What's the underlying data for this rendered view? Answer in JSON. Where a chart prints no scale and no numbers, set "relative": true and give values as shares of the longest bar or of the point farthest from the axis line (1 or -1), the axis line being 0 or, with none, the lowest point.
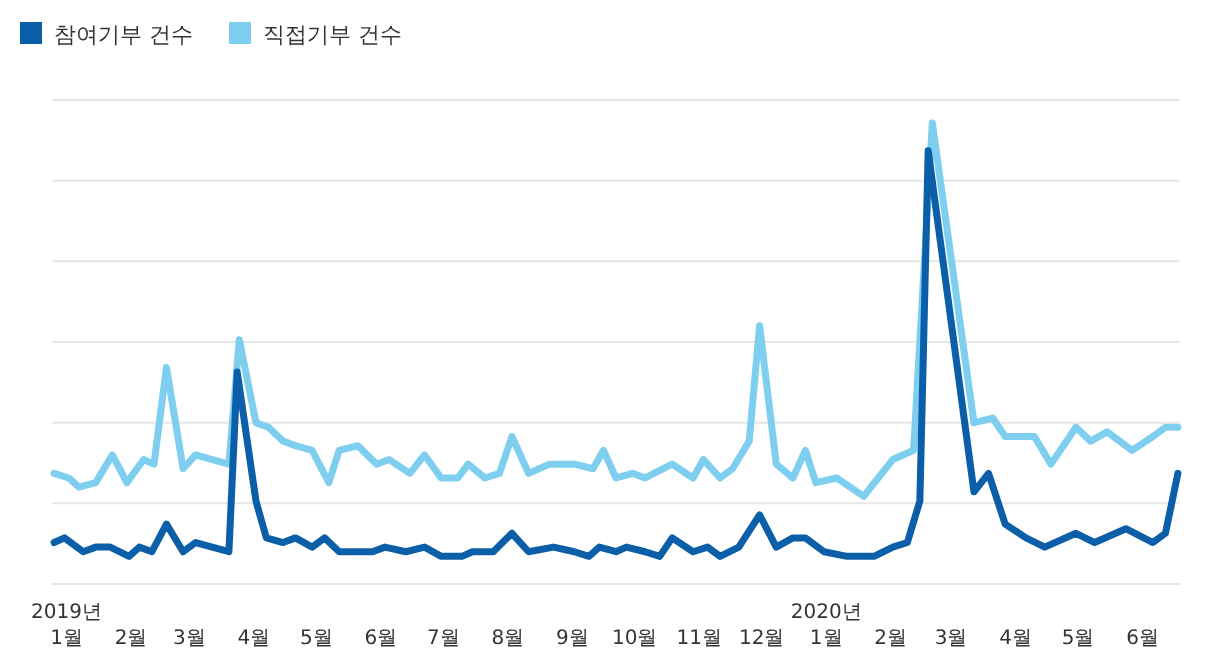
{
  "chart_data": {
    "type": "line",
    "relative": true,
    "grid": "y",
    "legend": "top left",
    "line_style": "solid",
    "marker": "none",
    "xlim": [
      "2018-12-25",
      "2020-06-19"
    ],
    "xticks": [
      {
        "value": "2019-01-01",
        "label": "2019년\n1월"
      },
      {
        "value": "2019-02-01",
        "label": "2월"
      },
      {
        "value": "2019-03-01",
        "label": "3월"
      },
      {
        "value": "2019-04-01",
        "label": "4월"
      },
      {
        "value": "2019-05-01",
        "label": "5월"
      },
      {
        "value": "2019-06-01",
        "label": "6월"
      },
      {
        "value": "2019-07-01",
        "label": "7월"
      },
      {
        "value": "2019-08-01",
        "label": "8월"
      },
      {
        "value": "2019-09-01",
        "label": "9월"
      },
      {
        "value": "2019-10-01",
        "label": "10월"
      },
      {
        "value": "2019-11-01",
        "label": "11월"
      },
      {
        "value": "2019-12-01",
        "label": "12월"
      },
      {
        "value": "2020-01-01",
        "label": "2020년\n1월"
      },
      {
        "value": "2020-02-01",
        "label": "2월"
      },
      {
        "value": "2020-03-01",
        "label": "3월"
      },
      {
        "value": "2020-04-01",
        "label": "4월"
      },
      {
        "value": "2020-05-01",
        "label": "5월"
      },
      {
        "value": "2020-06-01",
        "label": "6월"
      }
    ],
    "series": [
      {
        "name": "직접기부 건수",
        "color": "#7ecef0",
        "x": [
          "2018-12-26",
          "2019-01-02",
          "2019-01-07",
          "2019-01-15",
          "2019-01-23",
          "2019-01-30",
          "2019-02-07",
          "2019-02-12",
          "2019-02-18",
          "2019-02-26",
          "2019-03-04",
          "2019-03-12",
          "2019-03-20",
          "2019-03-25",
          "2019-04-02",
          "2019-04-08",
          "2019-04-15",
          "2019-04-21",
          "2019-04-29",
          "2019-05-07",
          "2019-05-12",
          "2019-05-21",
          "2019-05-30",
          "2019-06-05",
          "2019-06-15",
          "2019-06-22",
          "2019-06-30",
          "2019-07-08",
          "2019-07-13",
          "2019-07-21",
          "2019-07-28",
          "2019-08-03",
          "2019-08-11",
          "2019-08-21",
          "2019-09-02",
          "2019-09-11",
          "2019-09-16",
          "2019-09-22",
          "2019-09-30",
          "2019-10-06",
          "2019-10-19",
          "2019-10-29",
          "2019-11-03",
          "2019-11-11",
          "2019-11-17",
          "2019-11-25",
          "2019-11-30",
          "2019-12-08",
          "2019-12-16",
          "2019-12-22",
          "2019-12-27",
          "2020-01-06",
          "2020-01-19",
          "2020-02-02",
          "2020-02-12",
          "2020-02-21",
          "2020-03-12",
          "2020-03-21",
          "2020-03-27",
          "2020-04-10",
          "2020-04-18",
          "2020-04-30",
          "2020-05-07",
          "2020-05-15",
          "2020-05-27",
          "2020-06-06",
          "2020-06-12",
          "2020-06-18"
        ],
        "values": [
          0.24,
          0.23,
          0.21,
          0.22,
          0.28,
          0.22,
          0.27,
          0.26,
          0.47,
          0.25,
          0.28,
          0.27,
          0.26,
          0.53,
          0.35,
          0.34,
          0.31,
          0.3,
          0.29,
          0.22,
          0.29,
          0.3,
          0.26,
          0.27,
          0.24,
          0.28,
          0.23,
          0.23,
          0.26,
          0.23,
          0.24,
          0.32,
          0.24,
          0.26,
          0.26,
          0.25,
          0.29,
          0.23,
          0.24,
          0.23,
          0.26,
          0.23,
          0.27,
          0.23,
          0.25,
          0.31,
          0.56,
          0.26,
          0.23,
          0.29,
          0.22,
          0.23,
          0.19,
          0.27,
          0.29,
          1,
          0.35,
          0.36,
          0.32,
          0.32,
          0.26,
          0.34,
          0.31,
          0.33,
          0.29,
          0.32,
          0.34,
          0.34
        ]
      },
      {
        "name": "참여기부 건수",
        "color": "#0b5ea8",
        "x": [
          "2018-12-26",
          "2018-12-31",
          "2019-01-09",
          "2019-01-15",
          "2019-01-22",
          "2019-01-31",
          "2019-02-05",
          "2019-02-11",
          "2019-02-18",
          "2019-02-26",
          "2019-03-04",
          "2019-03-12",
          "2019-03-20",
          "2019-03-24",
          "2019-04-02",
          "2019-04-07",
          "2019-04-15",
          "2019-04-21",
          "2019-04-29",
          "2019-05-05",
          "2019-05-12",
          "2019-05-21",
          "2019-05-28",
          "2019-06-03",
          "2019-06-13",
          "2019-06-22",
          "2019-06-30",
          "2019-07-10",
          "2019-07-15",
          "2019-07-25",
          "2019-08-03",
          "2019-08-11",
          "2019-08-23",
          "2019-09-02",
          "2019-09-09",
          "2019-09-14",
          "2019-09-22",
          "2019-09-27",
          "2019-10-06",
          "2019-10-13",
          "2019-10-19",
          "2019-10-29",
          "2019-11-05",
          "2019-11-11",
          "2019-11-20",
          "2019-11-30",
          "2019-12-08",
          "2019-12-16",
          "2019-12-22",
          "2019-12-31",
          "2020-01-11",
          "2020-01-24",
          "2020-02-02",
          "2020-02-09",
          "2020-02-15",
          "2020-02-19",
          "2020-03-12",
          "2020-03-19",
          "2020-03-27",
          "2020-04-06",
          "2020-04-15",
          "2020-04-30",
          "2020-05-09",
          "2020-05-24",
          "2020-06-06",
          "2020-06-12",
          "2020-06-18"
        ],
        "values": [
          0.09,
          0.1,
          0.07,
          0.08,
          0.08,
          0.06,
          0.08,
          0.07,
          0.13,
          0.07,
          0.09,
          0.08,
          0.07,
          0.46,
          0.18,
          0.1,
          0.09,
          0.1,
          0.08,
          0.1,
          0.07,
          0.07,
          0.07,
          0.08,
          0.07,
          0.08,
          0.06,
          0.06,
          0.07,
          0.07,
          0.11,
          0.07,
          0.08,
          0.07,
          0.06,
          0.08,
          0.07,
          0.08,
          0.07,
          0.06,
          0.1,
          0.07,
          0.08,
          0.06,
          0.08,
          0.15,
          0.08,
          0.1,
          0.1,
          0.07,
          0.06,
          0.06,
          0.08,
          0.09,
          0.18,
          0.94,
          0.2,
          0.24,
          0.13,
          0.1,
          0.08,
          0.11,
          0.09,
          0.12,
          0.09,
          0.11,
          0.24
        ]
      }
    ]
  }
}
